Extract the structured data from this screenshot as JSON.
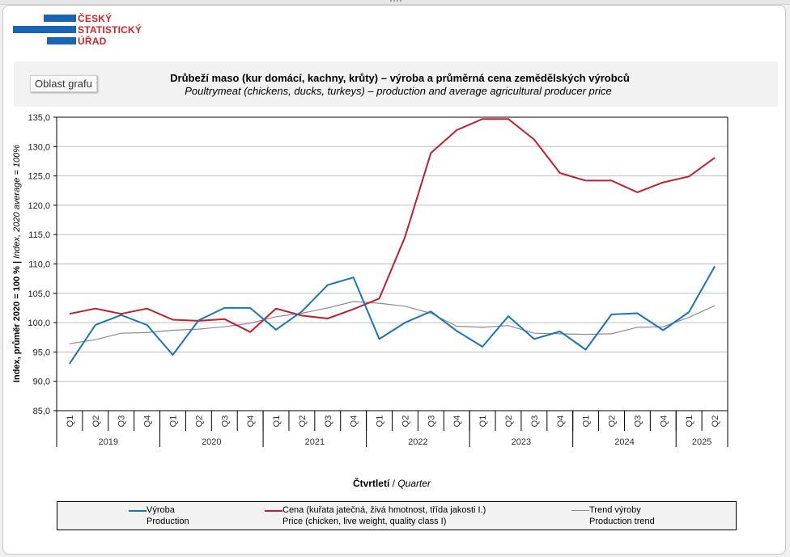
{
  "logo": {
    "line1": "ČESKÝ",
    "line2": "STATISTICKÝ",
    "line3": "ÚŘAD"
  },
  "chart_area_button": "Oblast grafu",
  "colors": {
    "production": "#1a74bb",
    "price": "#c0202a",
    "trend": "#8c8c8c",
    "logo_blue": "#1a64b4",
    "logo_red": "#d2232a"
  },
  "chart_data": {
    "type": "line",
    "title": "Drůbeží maso (kur domácí, kachny, krůty) – výroba a průměrná cena zemědělských výrobců",
    "subtitle": "Poultrymeat (chickens, ducks, turkeys) – production and average agricultural producer price",
    "ylabel_cz": "Index, průměr 2020 = 100 % | ",
    "ylabel_en": "Index, 2020 average = 100%",
    "xlabel_cz": "Čtvrtletí",
    "xlabel_sep": " / ",
    "xlabel_en": "Quarter",
    "ylim": [
      85,
      135
    ],
    "yticks": [
      "85,0",
      "90,0",
      "95,0",
      "100,0",
      "105,0",
      "110,0",
      "115,0",
      "120,0",
      "125,0",
      "130,0",
      "135,0"
    ],
    "grid": true,
    "quarters": [
      "Q1",
      "Q2",
      "Q3",
      "Q4",
      "Q1",
      "Q2",
      "Q3",
      "Q4",
      "Q1",
      "Q2",
      "Q3",
      "Q4",
      "Q1",
      "Q2",
      "Q3",
      "Q4",
      "Q1",
      "Q2",
      "Q3",
      "Q4",
      "Q1",
      "Q2",
      "Q3",
      "Q4",
      "Q1",
      "Q2"
    ],
    "years": [
      {
        "label": "2019",
        "count": 4
      },
      {
        "label": "2020",
        "count": 4
      },
      {
        "label": "2021",
        "count": 4
      },
      {
        "label": "2022",
        "count": 4
      },
      {
        "label": "2023",
        "count": 4
      },
      {
        "label": "2024",
        "count": 4
      },
      {
        "label": "2025",
        "count": 2
      }
    ],
    "series": [
      {
        "key": "trend",
        "name_cz": "Trend výroby",
        "name_en": "Production trend",
        "values": [
          96.4,
          97.1,
          98.2,
          98.3,
          98.7,
          98.9,
          99.3,
          99.9,
          101.0,
          101.6,
          102.5,
          103.6,
          103.3,
          102.8,
          101.6,
          99.4,
          99.2,
          99.5,
          98.2,
          98.1,
          98.0,
          98.1,
          99.2,
          99.3,
          100.9,
          102.9
        ]
      },
      {
        "key": "price",
        "name_cz": "Cena (kuřata jatečná, živá hmotnost, třída jakosti I.)",
        "name_en": "Price (chicken, live weight, quality class I)",
        "values": [
          101.5,
          102.4,
          101.5,
          102.4,
          100.5,
          100.3,
          100.6,
          98.4,
          102.4,
          101.2,
          100.7,
          102.3,
          104.1,
          114.6,
          128.9,
          132.8,
          134.7,
          134.7,
          131.2,
          125.5,
          124.2,
          124.2,
          122.2,
          123.9,
          124.9,
          128.1
        ]
      },
      {
        "key": "production",
        "name_cz": "Výroba",
        "name_en": "Production",
        "values": [
          93.0,
          99.6,
          101.3,
          99.6,
          94.5,
          100.4,
          102.5,
          102.5,
          98.8,
          101.9,
          106.4,
          107.7,
          97.2,
          100.0,
          101.9,
          98.6,
          95.9,
          101.1,
          97.2,
          98.5,
          95.4,
          101.4,
          101.6,
          98.7,
          101.8,
          109.6
        ]
      }
    ],
    "legend_position": "bottom"
  }
}
